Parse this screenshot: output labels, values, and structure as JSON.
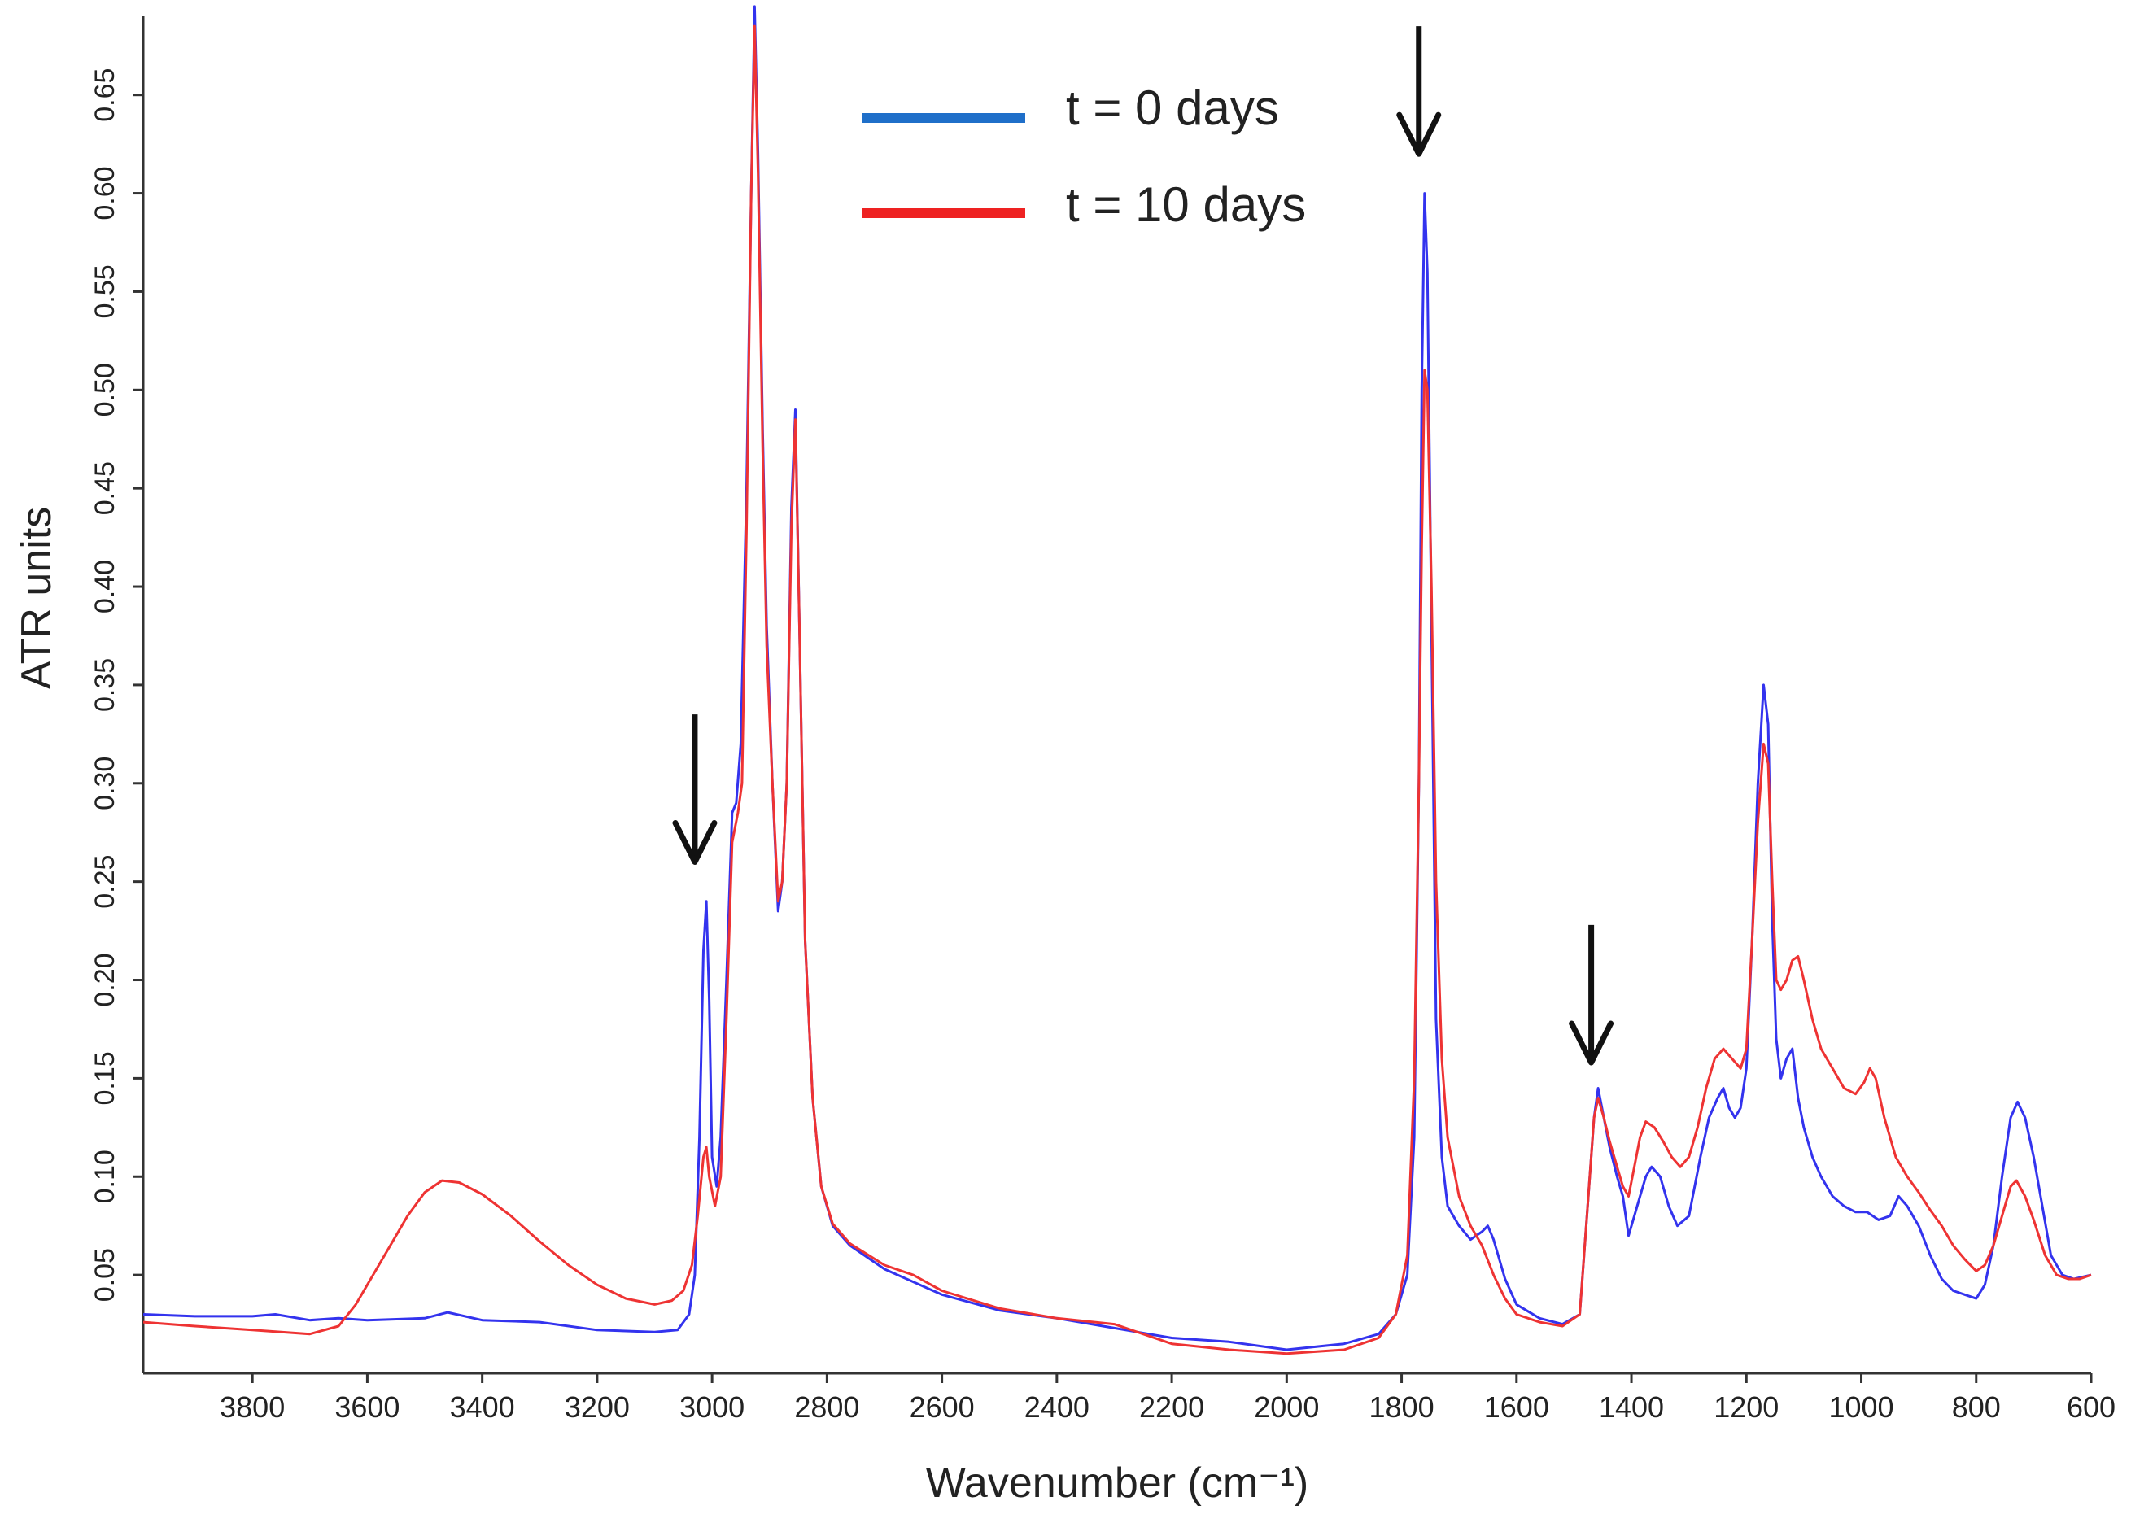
{
  "chart_data": {
    "type": "line",
    "title": "",
    "xlabel": "Wavenumber (cm⁻¹)",
    "ylabel": "ATR units",
    "xlim": [
      3990,
      600
    ],
    "ylim": [
      0.0,
      0.69
    ],
    "x_reversed": true,
    "grid": false,
    "legend_position": "top-center",
    "x_ticks": [
      {
        "value": 3800,
        "label": "3800"
      },
      {
        "value": 3600,
        "label": "3600"
      },
      {
        "value": 3400,
        "label": "3400"
      },
      {
        "value": 3200,
        "label": "3200"
      },
      {
        "value": 3000,
        "label": "3000"
      },
      {
        "value": 2800,
        "label": "2800"
      },
      {
        "value": 2600,
        "label": "2600"
      },
      {
        "value": 2400,
        "label": "2400"
      },
      {
        "value": 2200,
        "label": "2200"
      },
      {
        "value": 2000,
        "label": "2000"
      },
      {
        "value": 1800,
        "label": "1800"
      },
      {
        "value": 1600,
        "label": "1600"
      },
      {
        "value": 1400,
        "label": "1400"
      },
      {
        "value": 1200,
        "label": "1200"
      },
      {
        "value": 1000,
        "label": "1000"
      },
      {
        "value": 800,
        "label": "800"
      },
      {
        "value": 600,
        "label": "600"
      }
    ],
    "y_ticks": [
      {
        "value": 0.05,
        "label": "0.05"
      },
      {
        "value": 0.1,
        "label": "0.10"
      },
      {
        "value": 0.15,
        "label": "0.15"
      },
      {
        "value": 0.2,
        "label": "0.20"
      },
      {
        "value": 0.25,
        "label": "0.25"
      },
      {
        "value": 0.3,
        "label": "0.30"
      },
      {
        "value": 0.35,
        "label": "0.35"
      },
      {
        "value": 0.4,
        "label": "0.40"
      },
      {
        "value": 0.45,
        "label": "0.45"
      },
      {
        "value": 0.5,
        "label": "0.50"
      },
      {
        "value": 0.55,
        "label": "0.55"
      },
      {
        "value": 0.6,
        "label": "0.60"
      },
      {
        "value": 0.65,
        "label": "0.65"
      }
    ],
    "series": [
      {
        "name": "t = 0 days",
        "color": "#3333ee",
        "legend_color": "#1f6fc9",
        "points": [
          [
            3990,
            0.03
          ],
          [
            3900,
            0.029
          ],
          [
            3800,
            0.029
          ],
          [
            3760,
            0.03
          ],
          [
            3700,
            0.027
          ],
          [
            3650,
            0.028
          ],
          [
            3600,
            0.027
          ],
          [
            3500,
            0.028
          ],
          [
            3460,
            0.031
          ],
          [
            3400,
            0.027
          ],
          [
            3300,
            0.026
          ],
          [
            3200,
            0.022
          ],
          [
            3100,
            0.021
          ],
          [
            3060,
            0.022
          ],
          [
            3040,
            0.03
          ],
          [
            3030,
            0.05
          ],
          [
            3022,
            0.12
          ],
          [
            3015,
            0.215
          ],
          [
            3010,
            0.24
          ],
          [
            3005,
            0.19
          ],
          [
            3000,
            0.11
          ],
          [
            2992,
            0.095
          ],
          [
            2985,
            0.12
          ],
          [
            2975,
            0.2
          ],
          [
            2965,
            0.285
          ],
          [
            2958,
            0.29
          ],
          [
            2950,
            0.32
          ],
          [
            2940,
            0.45
          ],
          [
            2932,
            0.6
          ],
          [
            2926,
            0.695
          ],
          [
            2920,
            0.62
          ],
          [
            2912,
            0.48
          ],
          [
            2905,
            0.38
          ],
          [
            2895,
            0.3
          ],
          [
            2885,
            0.235
          ],
          [
            2878,
            0.25
          ],
          [
            2870,
            0.3
          ],
          [
            2862,
            0.44
          ],
          [
            2855,
            0.49
          ],
          [
            2848,
            0.38
          ],
          [
            2838,
            0.22
          ],
          [
            2825,
            0.14
          ],
          [
            2810,
            0.095
          ],
          [
            2790,
            0.075
          ],
          [
            2760,
            0.065
          ],
          [
            2700,
            0.053
          ],
          [
            2600,
            0.04
          ],
          [
            2500,
            0.032
          ],
          [
            2400,
            0.028
          ],
          [
            2300,
            0.023
          ],
          [
            2200,
            0.018
          ],
          [
            2100,
            0.016
          ],
          [
            2000,
            0.012
          ],
          [
            1900,
            0.015
          ],
          [
            1840,
            0.02
          ],
          [
            1810,
            0.03
          ],
          [
            1790,
            0.05
          ],
          [
            1778,
            0.12
          ],
          [
            1770,
            0.3
          ],
          [
            1765,
            0.5
          ],
          [
            1760,
            0.6
          ],
          [
            1755,
            0.56
          ],
          [
            1748,
            0.38
          ],
          [
            1740,
            0.18
          ],
          [
            1730,
            0.11
          ],
          [
            1720,
            0.085
          ],
          [
            1700,
            0.075
          ],
          [
            1680,
            0.068
          ],
          [
            1660,
            0.072
          ],
          [
            1650,
            0.075
          ],
          [
            1640,
            0.068
          ],
          [
            1620,
            0.048
          ],
          [
            1600,
            0.035
          ],
          [
            1560,
            0.028
          ],
          [
            1520,
            0.025
          ],
          [
            1490,
            0.03
          ],
          [
            1475,
            0.09
          ],
          [
            1465,
            0.13
          ],
          [
            1458,
            0.145
          ],
          [
            1448,
            0.13
          ],
          [
            1438,
            0.115
          ],
          [
            1425,
            0.1
          ],
          [
            1415,
            0.09
          ],
          [
            1405,
            0.07
          ],
          [
            1395,
            0.08
          ],
          [
            1385,
            0.09
          ],
          [
            1375,
            0.1
          ],
          [
            1365,
            0.105
          ],
          [
            1350,
            0.1
          ],
          [
            1335,
            0.085
          ],
          [
            1320,
            0.075
          ],
          [
            1300,
            0.08
          ],
          [
            1280,
            0.11
          ],
          [
            1265,
            0.13
          ],
          [
            1250,
            0.14
          ],
          [
            1240,
            0.145
          ],
          [
            1230,
            0.135
          ],
          [
            1220,
            0.13
          ],
          [
            1210,
            0.135
          ],
          [
            1200,
            0.155
          ],
          [
            1190,
            0.22
          ],
          [
            1180,
            0.3
          ],
          [
            1170,
            0.35
          ],
          [
            1162,
            0.33
          ],
          [
            1155,
            0.23
          ],
          [
            1148,
            0.17
          ],
          [
            1140,
            0.15
          ],
          [
            1130,
            0.16
          ],
          [
            1120,
            0.165
          ],
          [
            1110,
            0.14
          ],
          [
            1100,
            0.125
          ],
          [
            1085,
            0.11
          ],
          [
            1070,
            0.1
          ],
          [
            1050,
            0.09
          ],
          [
            1030,
            0.085
          ],
          [
            1010,
            0.082
          ],
          [
            990,
            0.082
          ],
          [
            970,
            0.078
          ],
          [
            950,
            0.08
          ],
          [
            935,
            0.09
          ],
          [
            920,
            0.085
          ],
          [
            900,
            0.075
          ],
          [
            880,
            0.06
          ],
          [
            860,
            0.048
          ],
          [
            840,
            0.042
          ],
          [
            820,
            0.04
          ],
          [
            800,
            0.038
          ],
          [
            785,
            0.045
          ],
          [
            770,
            0.065
          ],
          [
            755,
            0.1
          ],
          [
            740,
            0.13
          ],
          [
            728,
            0.138
          ],
          [
            715,
            0.13
          ],
          [
            700,
            0.11
          ],
          [
            685,
            0.085
          ],
          [
            670,
            0.06
          ],
          [
            650,
            0.05
          ],
          [
            630,
            0.048
          ],
          [
            600,
            0.05
          ]
        ]
      },
      {
        "name": "t = 10 days",
        "color": "#ee3333",
        "legend_color": "#ee2222",
        "points": [
          [
            3990,
            0.026
          ],
          [
            3900,
            0.024
          ],
          [
            3800,
            0.022
          ],
          [
            3700,
            0.02
          ],
          [
            3650,
            0.024
          ],
          [
            3620,
            0.035
          ],
          [
            3590,
            0.05
          ],
          [
            3560,
            0.065
          ],
          [
            3530,
            0.08
          ],
          [
            3500,
            0.092
          ],
          [
            3470,
            0.098
          ],
          [
            3440,
            0.097
          ],
          [
            3400,
            0.091
          ],
          [
            3350,
            0.08
          ],
          [
            3300,
            0.067
          ],
          [
            3250,
            0.055
          ],
          [
            3200,
            0.045
          ],
          [
            3150,
            0.038
          ],
          [
            3100,
            0.035
          ],
          [
            3070,
            0.037
          ],
          [
            3050,
            0.042
          ],
          [
            3035,
            0.055
          ],
          [
            3025,
            0.08
          ],
          [
            3015,
            0.11
          ],
          [
            3010,
            0.115
          ],
          [
            3005,
            0.1
          ],
          [
            2995,
            0.085
          ],
          [
            2985,
            0.1
          ],
          [
            2975,
            0.18
          ],
          [
            2965,
            0.27
          ],
          [
            2955,
            0.285
          ],
          [
            2948,
            0.3
          ],
          [
            2940,
            0.43
          ],
          [
            2932,
            0.6
          ],
          [
            2926,
            0.685
          ],
          [
            2920,
            0.61
          ],
          [
            2912,
            0.47
          ],
          [
            2905,
            0.37
          ],
          [
            2895,
            0.3
          ],
          [
            2885,
            0.24
          ],
          [
            2878,
            0.25
          ],
          [
            2870,
            0.3
          ],
          [
            2862,
            0.43
          ],
          [
            2855,
            0.485
          ],
          [
            2848,
            0.38
          ],
          [
            2838,
            0.22
          ],
          [
            2825,
            0.14
          ],
          [
            2810,
            0.095
          ],
          [
            2790,
            0.076
          ],
          [
            2760,
            0.066
          ],
          [
            2700,
            0.055
          ],
          [
            2650,
            0.05
          ],
          [
            2600,
            0.042
          ],
          [
            2500,
            0.033
          ],
          [
            2400,
            0.028
          ],
          [
            2300,
            0.025
          ],
          [
            2200,
            0.015
          ],
          [
            2100,
            0.012
          ],
          [
            2000,
            0.01
          ],
          [
            1900,
            0.012
          ],
          [
            1840,
            0.018
          ],
          [
            1810,
            0.03
          ],
          [
            1790,
            0.06
          ],
          [
            1778,
            0.15
          ],
          [
            1770,
            0.3
          ],
          [
            1765,
            0.42
          ],
          [
            1760,
            0.51
          ],
          [
            1755,
            0.5
          ],
          [
            1748,
            0.4
          ],
          [
            1740,
            0.25
          ],
          [
            1730,
            0.16
          ],
          [
            1720,
            0.12
          ],
          [
            1700,
            0.09
          ],
          [
            1680,
            0.075
          ],
          [
            1660,
            0.065
          ],
          [
            1640,
            0.05
          ],
          [
            1620,
            0.038
          ],
          [
            1600,
            0.03
          ],
          [
            1560,
            0.026
          ],
          [
            1520,
            0.024
          ],
          [
            1490,
            0.03
          ],
          [
            1475,
            0.09
          ],
          [
            1465,
            0.13
          ],
          [
            1458,
            0.14
          ],
          [
            1448,
            0.13
          ],
          [
            1438,
            0.118
          ],
          [
            1425,
            0.105
          ],
          [
            1415,
            0.095
          ],
          [
            1405,
            0.09
          ],
          [
            1395,
            0.105
          ],
          [
            1385,
            0.12
          ],
          [
            1375,
            0.128
          ],
          [
            1360,
            0.125
          ],
          [
            1345,
            0.118
          ],
          [
            1330,
            0.11
          ],
          [
            1315,
            0.105
          ],
          [
            1300,
            0.11
          ],
          [
            1285,
            0.125
          ],
          [
            1270,
            0.145
          ],
          [
            1255,
            0.16
          ],
          [
            1240,
            0.165
          ],
          [
            1225,
            0.16
          ],
          [
            1210,
            0.155
          ],
          [
            1200,
            0.165
          ],
          [
            1190,
            0.22
          ],
          [
            1180,
            0.28
          ],
          [
            1170,
            0.32
          ],
          [
            1162,
            0.31
          ],
          [
            1155,
            0.25
          ],
          [
            1148,
            0.2
          ],
          [
            1140,
            0.195
          ],
          [
            1130,
            0.2
          ],
          [
            1120,
            0.21
          ],
          [
            1110,
            0.212
          ],
          [
            1100,
            0.2
          ],
          [
            1085,
            0.18
          ],
          [
            1070,
            0.165
          ],
          [
            1050,
            0.155
          ],
          [
            1030,
            0.145
          ],
          [
            1010,
            0.142
          ],
          [
            995,
            0.148
          ],
          [
            985,
            0.155
          ],
          [
            975,
            0.15
          ],
          [
            960,
            0.13
          ],
          [
            940,
            0.11
          ],
          [
            920,
            0.1
          ],
          [
            900,
            0.092
          ],
          [
            880,
            0.083
          ],
          [
            860,
            0.075
          ],
          [
            840,
            0.065
          ],
          [
            820,
            0.058
          ],
          [
            800,
            0.052
          ],
          [
            785,
            0.055
          ],
          [
            770,
            0.065
          ],
          [
            755,
            0.08
          ],
          [
            740,
            0.095
          ],
          [
            730,
            0.098
          ],
          [
            715,
            0.09
          ],
          [
            700,
            0.078
          ],
          [
            680,
            0.06
          ],
          [
            660,
            0.05
          ],
          [
            640,
            0.048
          ],
          [
            620,
            0.048
          ],
          [
            600,
            0.05
          ]
        ]
      }
    ],
    "annotations": [
      {
        "type": "arrow-down",
        "x": 3030,
        "y_top": 0.335,
        "y_tip": 0.26
      },
      {
        "type": "arrow-down",
        "x": 1770,
        "y_top": 0.685,
        "y_tip": 0.62
      },
      {
        "type": "arrow-down",
        "x": 1470,
        "y_top": 0.228,
        "y_tip": 0.158
      }
    ]
  }
}
